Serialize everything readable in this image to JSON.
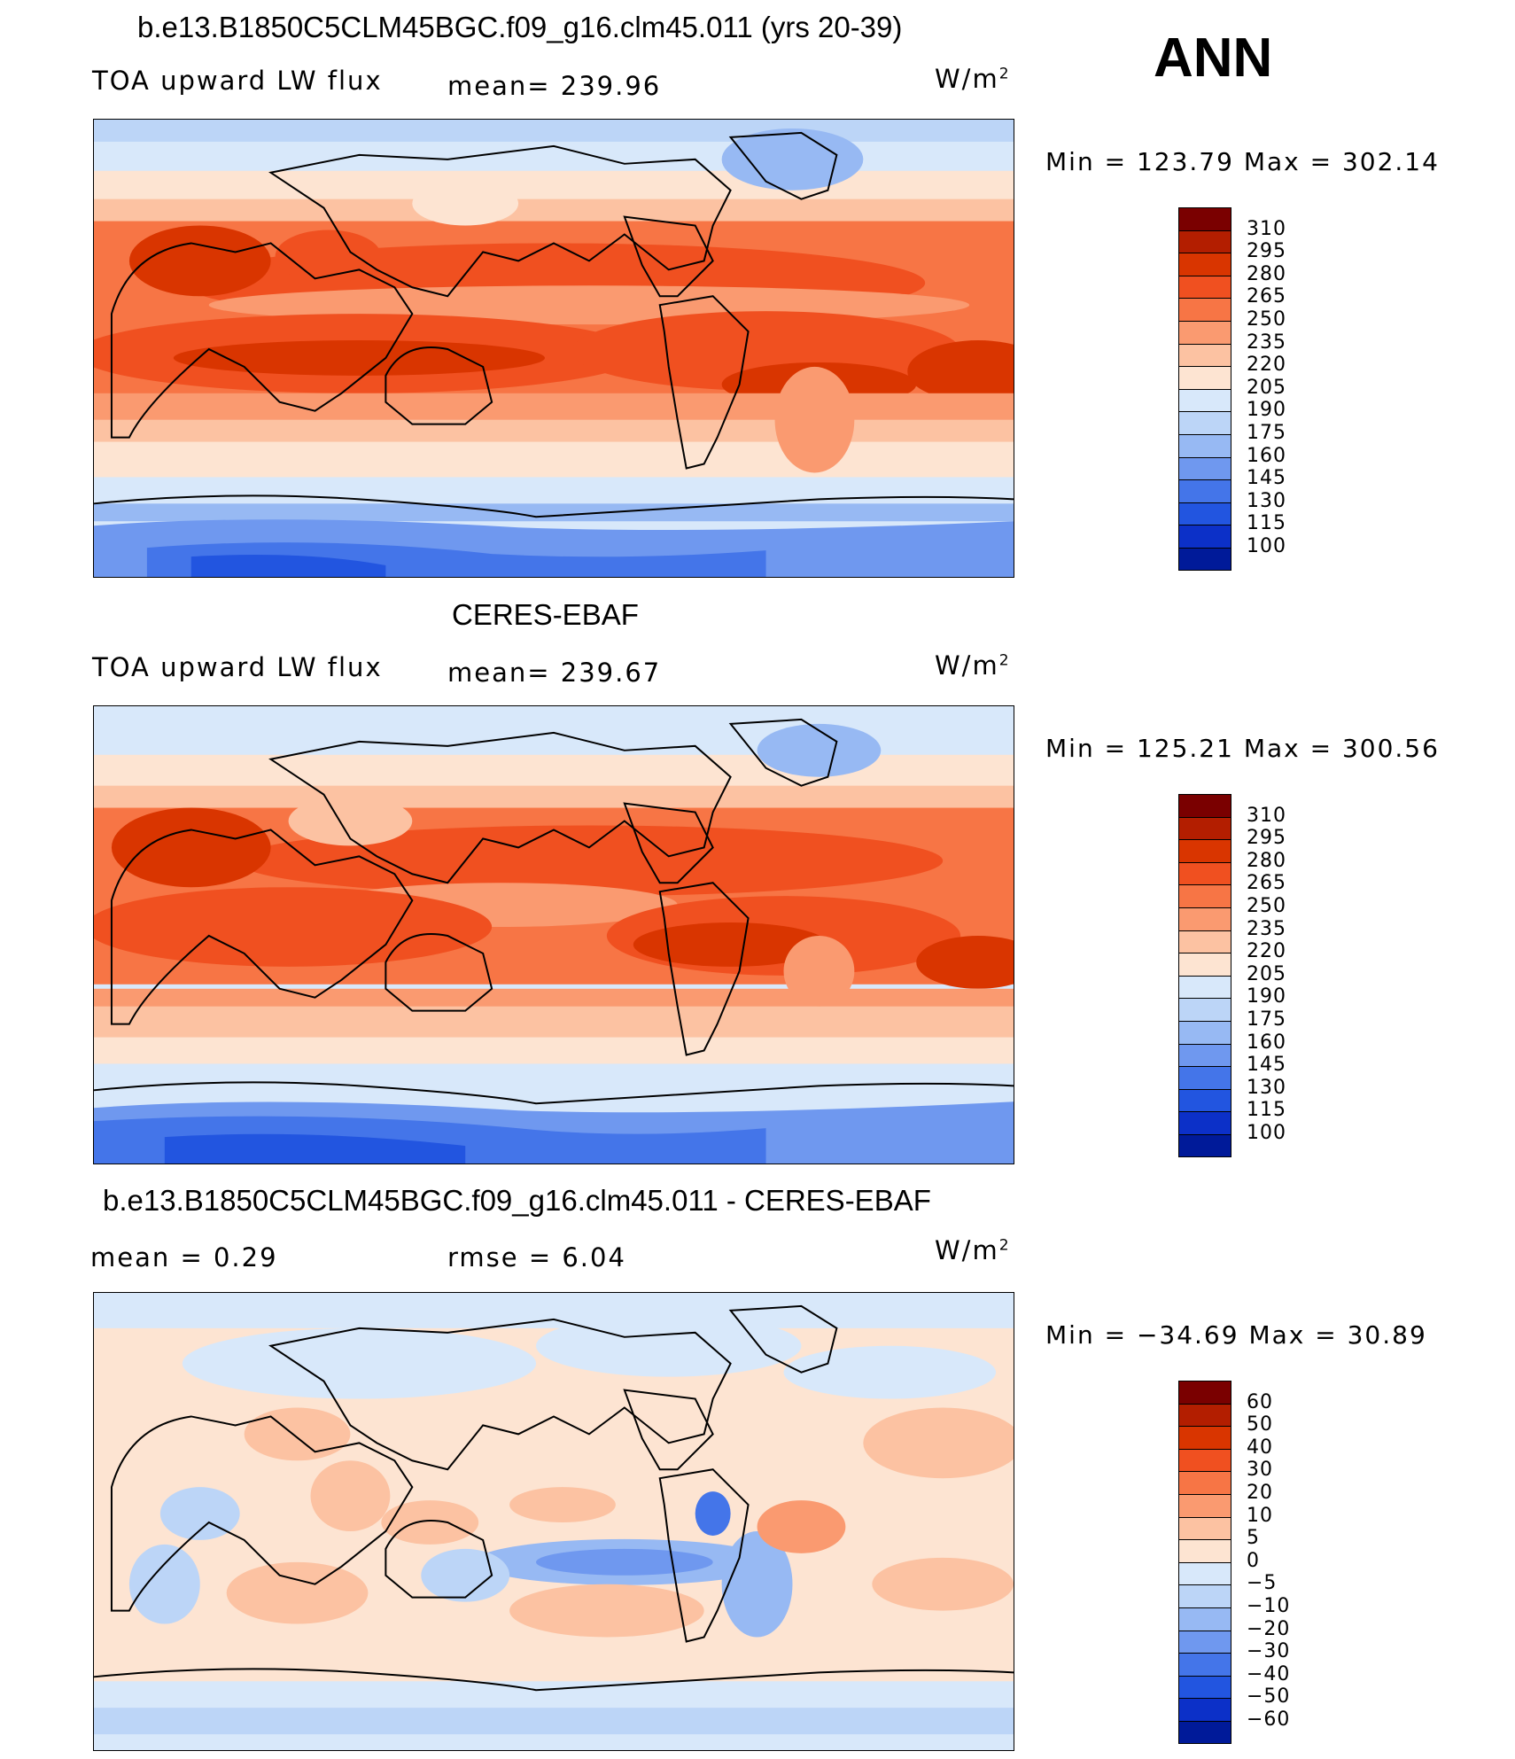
{
  "header": {
    "case_title": "b.e13.B1850C5CLM45BGC.f09_g16.clm45.011 (yrs 20-39)",
    "season": "ANN"
  },
  "panels": [
    {
      "id": "model",
      "title": "b.e13.B1850C5CLM45BGC.f09_g16.clm45.011 (yrs 20-39)",
      "variable": "TOA upward LW flux",
      "stat1": "mean=  239.96",
      "stat2": "",
      "unit_base": "W/m",
      "unit_exp": "2",
      "minmax": "Min  =  123.79  Max  =  302.14",
      "colorbar": {
        "labels": [
          "310",
          "295",
          "280",
          "265",
          "250",
          "235",
          "220",
          "205",
          "190",
          "175",
          "160",
          "145",
          "130",
          "115",
          "100"
        ],
        "colors": [
          "#7a0000",
          "#b31e00",
          "#d93500",
          "#f05020",
          "#f77545",
          "#fa9a70",
          "#fcc2a2",
          "#fde4d2",
          "#d8e8fa",
          "#bcd5f7",
          "#97b9f3",
          "#6f98ef",
          "#4475e9",
          "#2255e0",
          "#0c30c8",
          "#001a99"
        ]
      }
    },
    {
      "id": "obs",
      "title": "CERES-EBAF",
      "variable": "TOA upward LW flux",
      "stat1": "mean=  239.67",
      "stat2": "",
      "unit_base": "W/m",
      "unit_exp": "2",
      "minmax": "Min  =  125.21  Max  =  300.56",
      "colorbar": {
        "labels": [
          "310",
          "295",
          "280",
          "265",
          "250",
          "235",
          "220",
          "205",
          "190",
          "175",
          "160",
          "145",
          "130",
          "115",
          "100"
        ],
        "colors": [
          "#7a0000",
          "#b31e00",
          "#d93500",
          "#f05020",
          "#f77545",
          "#fa9a70",
          "#fcc2a2",
          "#fde4d2",
          "#d8e8fa",
          "#bcd5f7",
          "#97b9f3",
          "#6f98ef",
          "#4475e9",
          "#2255e0",
          "#0c30c8",
          "#001a99"
        ]
      }
    },
    {
      "id": "diff",
      "title": "b.e13.B1850C5CLM45BGC.f09_g16.clm45.011 - CERES-EBAF",
      "variable": "",
      "stat1": "mean  =     0.29",
      "stat2": "rmse  =     6.04",
      "unit_base": "W/m",
      "unit_exp": "2",
      "minmax": "Min  =  −34.69  Max  =    30.89",
      "colorbar": {
        "labels": [
          "60",
          "50",
          "40",
          "30",
          "20",
          "10",
          "5",
          "0",
          "−5",
          "−10",
          "−20",
          "−30",
          "−40",
          "−50",
          "−60"
        ],
        "colors": [
          "#7a0000",
          "#b31e00",
          "#d93500",
          "#f05020",
          "#f77545",
          "#fa9a70",
          "#fcc2a2",
          "#fde4d2",
          "#d8e8fa",
          "#bcd5f7",
          "#97b9f3",
          "#6f98ef",
          "#4475e9",
          "#2255e0",
          "#0c30c8",
          "#001a99"
        ]
      }
    }
  ]
}
